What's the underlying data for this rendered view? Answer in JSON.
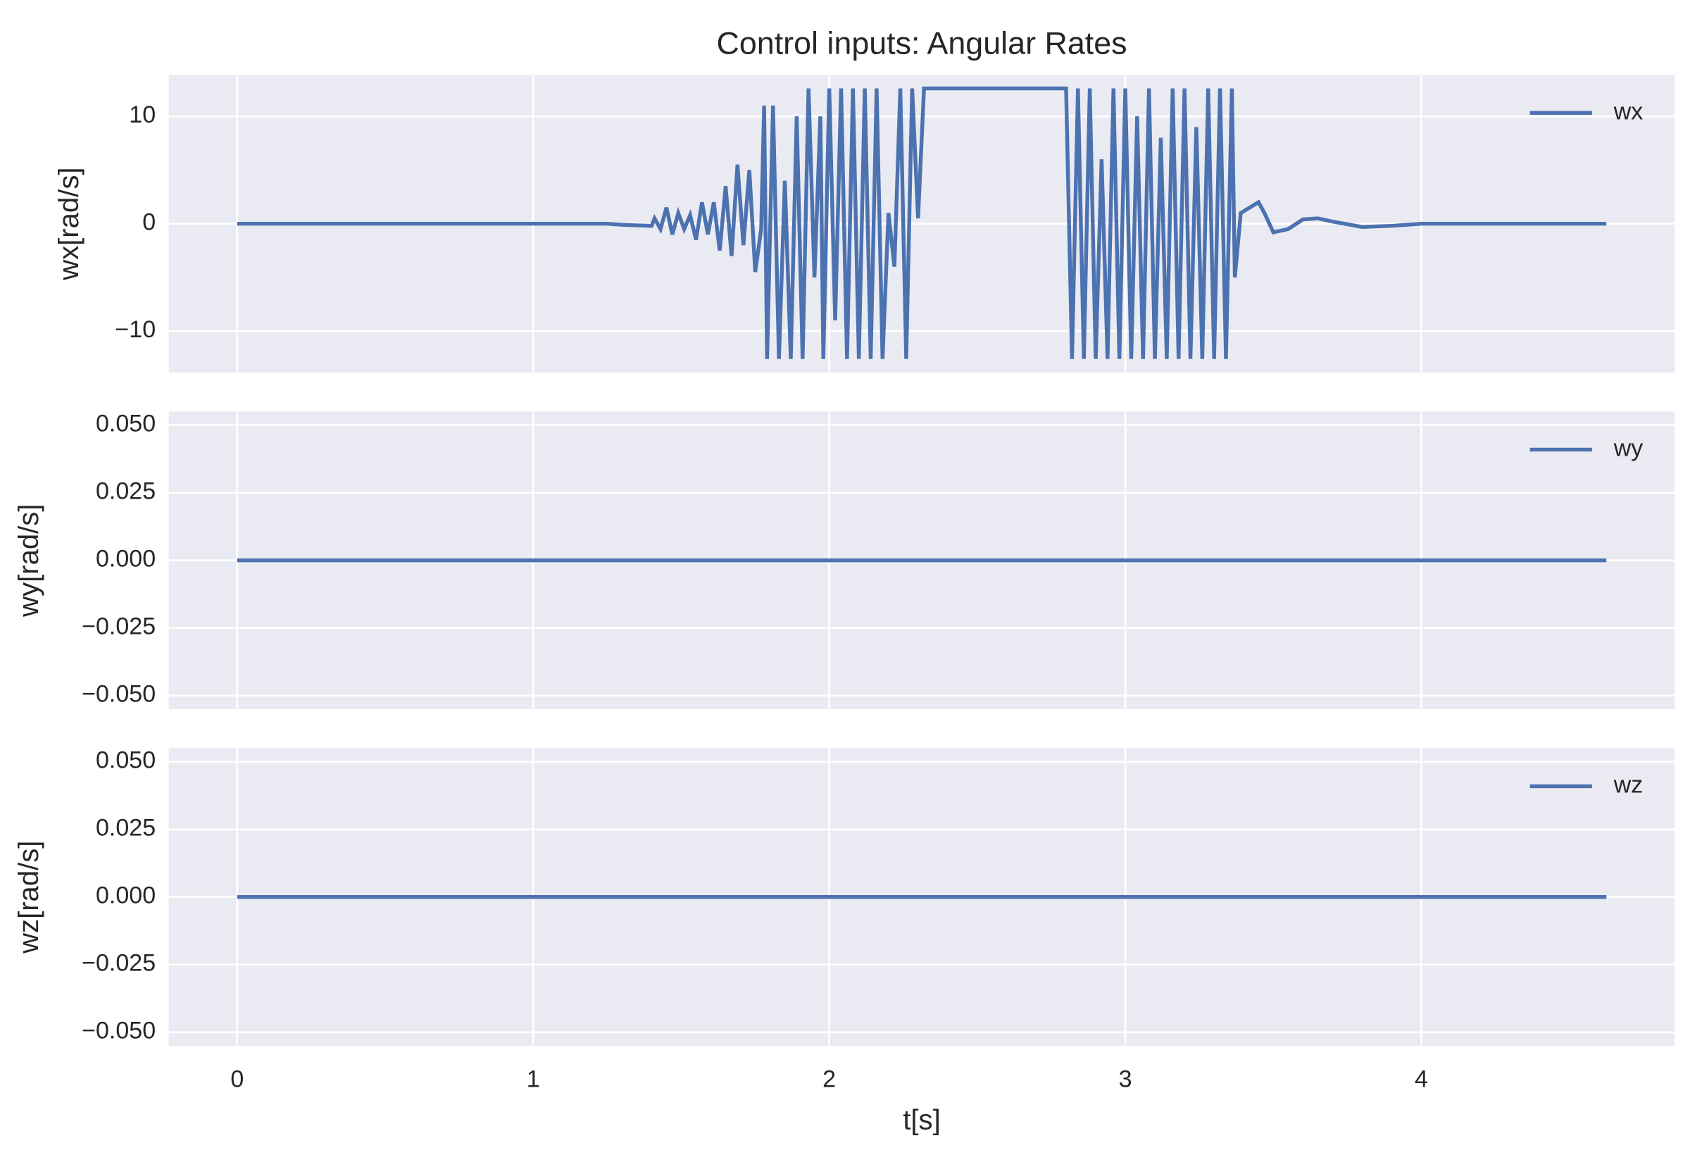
{
  "chart_data": [
    {
      "type": "line",
      "title": "Control inputs: Angular Rates",
      "ylabel": "wx[rad/s]",
      "series": [
        {
          "name": "wx",
          "color": "#4c72b0",
          "x": [
            0,
            1.25,
            1.3,
            1.4,
            1.41,
            1.43,
            1.45,
            1.47,
            1.49,
            1.51,
            1.53,
            1.55,
            1.57,
            1.59,
            1.61,
            1.63,
            1.65,
            1.67,
            1.69,
            1.71,
            1.73,
            1.75,
            1.77,
            1.78,
            1.79,
            1.81,
            1.83,
            1.85,
            1.87,
            1.89,
            1.91,
            1.93,
            1.95,
            1.97,
            1.98,
            2.0,
            2.02,
            2.04,
            2.06,
            2.08,
            2.1,
            2.12,
            2.14,
            2.16,
            2.18,
            2.2,
            2.22,
            2.24,
            2.26,
            2.28,
            2.3,
            2.32,
            2.35,
            2.8,
            2.82,
            2.84,
            2.86,
            2.88,
            2.9,
            2.92,
            2.94,
            2.96,
            2.98,
            3.0,
            3.02,
            3.04,
            3.06,
            3.08,
            3.1,
            3.12,
            3.14,
            3.16,
            3.18,
            3.2,
            3.22,
            3.24,
            3.26,
            3.28,
            3.3,
            3.32,
            3.34,
            3.36,
            3.37,
            3.39,
            3.42,
            3.45,
            3.47,
            3.5,
            3.55,
            3.6,
            3.65,
            3.7,
            3.8,
            3.9,
            4.0,
            4.625
          ],
          "values": [
            0,
            0,
            -0.1,
            -0.2,
            0.5,
            -0.5,
            1.5,
            -1,
            1,
            -0.5,
            0.8,
            -1.5,
            2,
            -1,
            2,
            -2.5,
            3.5,
            -3,
            5.5,
            -2,
            5,
            -4.5,
            -0.5,
            11,
            -12.6,
            11,
            -12.6,
            4,
            -12.6,
            10,
            -12.6,
            12.6,
            -5,
            10,
            -12.6,
            12.6,
            -9,
            12.6,
            -12.6,
            12.6,
            -12.6,
            12.6,
            -12.6,
            12.6,
            -12.6,
            1,
            -4,
            12.6,
            -12.6,
            12.6,
            0.5,
            12.6,
            12.6,
            12.6,
            -12.6,
            12.6,
            -12.6,
            12.6,
            -12.6,
            6,
            -12.6,
            12.6,
            -12.6,
            12.6,
            -12.6,
            10,
            -12.6,
            12.6,
            -12.6,
            8,
            -12.6,
            12.6,
            -12.6,
            12.6,
            -12.6,
            9,
            -12.6,
            12.6,
            -12.6,
            12.6,
            -12.6,
            12.6,
            -5,
            1,
            1.5,
            2,
            1,
            -0.8,
            -0.5,
            0.4,
            0.5,
            0.2,
            -0.3,
            -0.2,
            0,
            0
          ]
        }
      ],
      "xlim": [
        -0.231,
        4.856
      ],
      "ylim": [
        -13.86,
        13.86
      ],
      "xticks": [
        0,
        1,
        2,
        3,
        4
      ],
      "yticks": [
        {
          "value": -10,
          "label": "−10"
        },
        0,
        10
      ],
      "grid": true,
      "legend": "upper right"
    },
    {
      "type": "line",
      "ylabel": "wy[rad/s]",
      "series": [
        {
          "name": "wy",
          "color": "#4c72b0",
          "x": [
            0,
            4.625
          ],
          "values": [
            0,
            0
          ]
        }
      ],
      "xlim": [
        -0.231,
        4.856
      ],
      "ylim": [
        -0.055,
        0.055
      ],
      "xticks": [
        0,
        1,
        2,
        3,
        4
      ],
      "yticks": [
        {
          "value": -0.05,
          "label": "−0.050"
        },
        {
          "value": -0.025,
          "label": "−0.025"
        },
        {
          "value": 0,
          "label": "0.000"
        },
        {
          "value": 0.025,
          "label": "0.025"
        },
        {
          "value": 0.05,
          "label": "0.050"
        }
      ],
      "grid": true,
      "legend": "upper right"
    },
    {
      "type": "line",
      "ylabel": "wz[rad/s]",
      "xlabel": "t[s]",
      "series": [
        {
          "name": "wz",
          "color": "#4c72b0",
          "x": [
            0,
            4.625
          ],
          "values": [
            0,
            0
          ]
        }
      ],
      "xlim": [
        -0.231,
        4.856
      ],
      "ylim": [
        -0.055,
        0.055
      ],
      "xticks": [
        0,
        1,
        2,
        3,
        4
      ],
      "yticks": [
        {
          "value": -0.05,
          "label": "−0.050"
        },
        {
          "value": -0.025,
          "label": "−0.025"
        },
        {
          "value": 0,
          "label": "0.000"
        },
        {
          "value": 0.025,
          "label": "0.025"
        },
        {
          "value": 0.05,
          "label": "0.050"
        }
      ],
      "grid": true,
      "legend": "upper right"
    }
  ]
}
